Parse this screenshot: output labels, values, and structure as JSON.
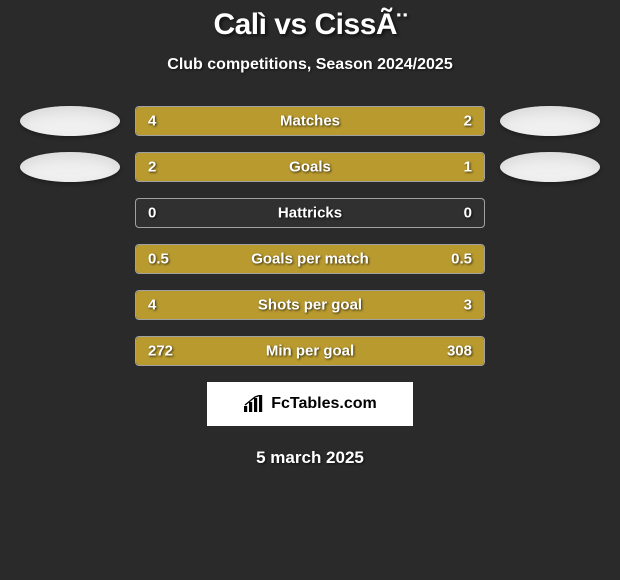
{
  "title": "Calì vs CissÃ¨",
  "subtitle": "Club competitions, Season 2024/2025",
  "colors": {
    "left_bar": "#b89a2f",
    "right_bar": "#b89a2f",
    "background": "#2a2a2a",
    "text": "#ffffff",
    "avatar_bg": "#f0f0f0",
    "logo_bg": "#ffffff",
    "logo_text": "#000000"
  },
  "bar_track_width": 350,
  "rows": [
    {
      "label": "Matches",
      "left_val": "4",
      "right_val": "2",
      "left_pct": 67,
      "right_pct": 33,
      "show_avatars": true
    },
    {
      "label": "Goals",
      "left_val": "2",
      "right_val": "1",
      "left_pct": 67,
      "right_pct": 33,
      "show_avatars": true
    },
    {
      "label": "Hattricks",
      "left_val": "0",
      "right_val": "0",
      "left_pct": 0,
      "right_pct": 0,
      "show_avatars": false
    },
    {
      "label": "Goals per match",
      "left_val": "0.5",
      "right_val": "0.5",
      "left_pct": 50,
      "right_pct": 50,
      "show_avatars": false
    },
    {
      "label": "Shots per goal",
      "left_val": "4",
      "right_val": "3",
      "left_pct": 57,
      "right_pct": 43,
      "show_avatars": false
    },
    {
      "label": "Min per goal",
      "left_val": "272",
      "right_val": "308",
      "left_pct": 47,
      "right_pct": 53,
      "show_avatars": false
    }
  ],
  "logo_text": "FcTables.com",
  "footer_date": "5 march 2025"
}
